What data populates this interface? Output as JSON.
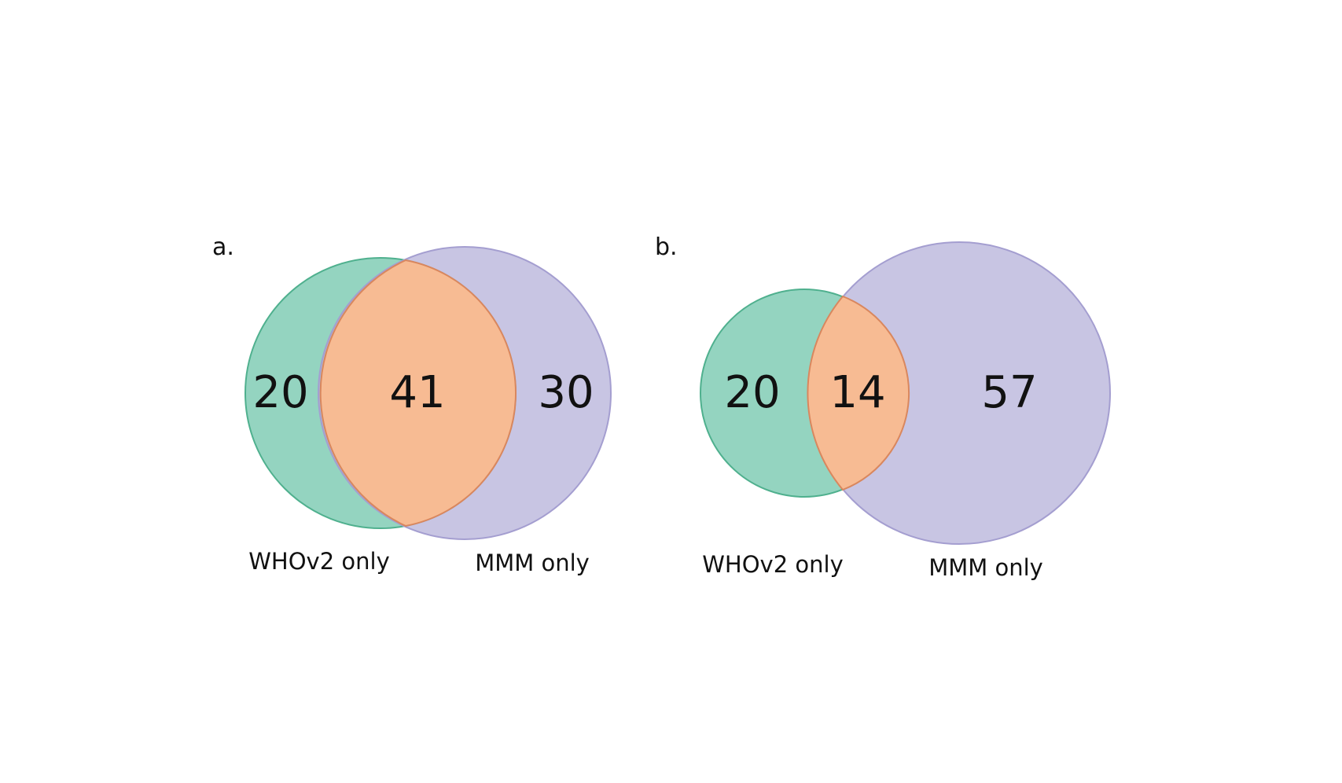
{
  "colors": {
    "left_set": "#66c2a5",
    "right_set": "#8da0cb",
    "overlap": "#fc8d62",
    "background": "#ffffff",
    "text": "#111111"
  },
  "panels": [
    {
      "label": "a.",
      "left_set_label": "WHOv2 only",
      "right_set_label": "MMM only",
      "left_only": "20",
      "overlap": "41",
      "right_only": "30"
    },
    {
      "label": "b.",
      "left_set_label": "WHOv2 only",
      "right_set_label": "MMM only",
      "left_only": "20",
      "overlap": "14",
      "right_only": "57"
    }
  ]
}
